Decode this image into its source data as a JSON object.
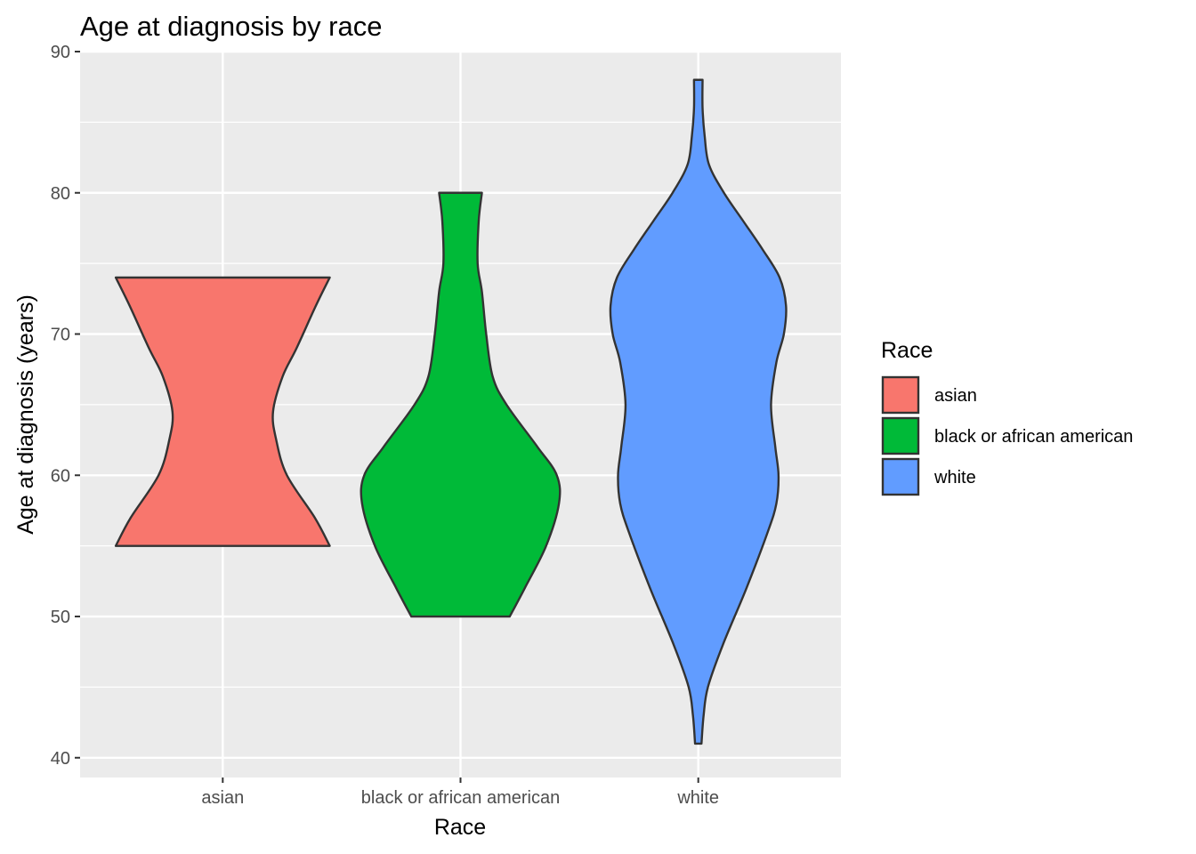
{
  "chart_data": {
    "type": "violin",
    "title": "Age at diagnosis by race",
    "xlabel": "Race",
    "ylabel": "Age at diagnosis (years)",
    "ylim": [
      38.6,
      90
    ],
    "y_ticks": [
      40,
      50,
      60,
      70,
      80,
      90
    ],
    "categories": [
      "asian",
      "black or african american",
      "white"
    ],
    "legend": {
      "title": "Race",
      "position": "right"
    },
    "series": [
      {
        "name": "asian",
        "color": "#F8766D",
        "min": 55,
        "max": 74,
        "profile": [
          [
            55,
            1.0
          ],
          [
            57,
            0.86
          ],
          [
            60,
            0.6
          ],
          [
            62.5,
            0.5
          ],
          [
            64.5,
            0.47
          ],
          [
            67,
            0.56
          ],
          [
            69,
            0.69
          ],
          [
            72,
            0.87
          ],
          [
            74,
            1.0
          ]
        ]
      },
      {
        "name": "black or african american",
        "color": "#00BA38",
        "min": 50,
        "max": 80,
        "profile": [
          [
            50,
            0.46
          ],
          [
            52,
            0.6
          ],
          [
            55,
            0.8
          ],
          [
            58,
            0.92
          ],
          [
            60,
            0.9
          ],
          [
            62,
            0.72
          ],
          [
            65,
            0.43
          ],
          [
            67,
            0.3
          ],
          [
            70,
            0.24
          ],
          [
            73,
            0.2
          ],
          [
            75,
            0.16
          ],
          [
            78,
            0.17
          ],
          [
            80,
            0.2
          ]
        ]
      },
      {
        "name": "white",
        "color": "#619CFF",
        "min": 41,
        "max": 88,
        "profile": [
          [
            41,
            0.03
          ],
          [
            43,
            0.05
          ],
          [
            45,
            0.09
          ],
          [
            48,
            0.23
          ],
          [
            52,
            0.45
          ],
          [
            56,
            0.65
          ],
          [
            58,
            0.73
          ],
          [
            60,
            0.75
          ],
          [
            62,
            0.72
          ],
          [
            65,
            0.68
          ],
          [
            68,
            0.73
          ],
          [
            70,
            0.8
          ],
          [
            72,
            0.82
          ],
          [
            74,
            0.76
          ],
          [
            76,
            0.6
          ],
          [
            78,
            0.42
          ],
          [
            80,
            0.24
          ],
          [
            82,
            0.1
          ],
          [
            84,
            0.06
          ],
          [
            86,
            0.04
          ],
          [
            88,
            0.04
          ]
        ]
      }
    ]
  }
}
